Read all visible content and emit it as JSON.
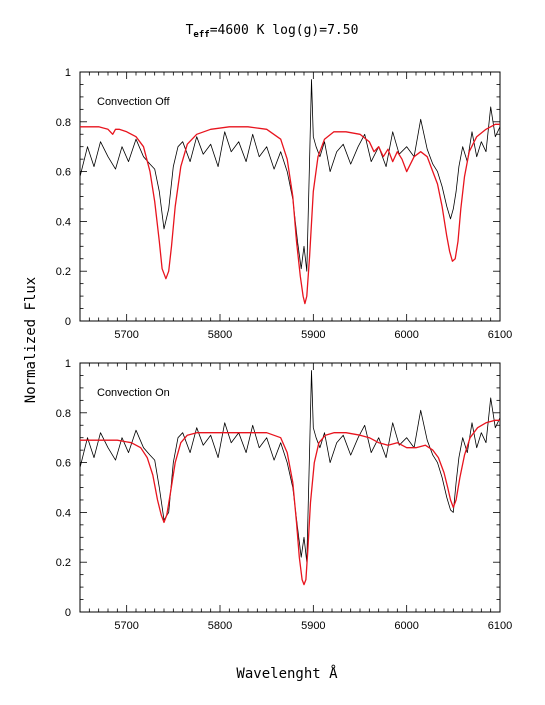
{
  "title": {
    "t": "T",
    "eff": "eff",
    "rest": "=4600 K  log(g)=7.50"
  },
  "ylabel": "Normalized Flux",
  "xlabel": "Wavelenght Å",
  "colors": {
    "observed": "#000000",
    "model": "#e8141e"
  },
  "chart_data": [
    {
      "type": "line",
      "annotation": "Convection Off",
      "xlim": [
        5650,
        6100
      ],
      "ylim": [
        0,
        1
      ],
      "x_ticks": [
        5700,
        5800,
        5900,
        6000,
        6100
      ],
      "y_ticks": [
        0,
        0.2,
        0.4,
        0.6,
        0.8,
        1
      ],
      "series": [
        {
          "color": "#000000",
          "x": [
            5650,
            5658,
            5665,
            5672,
            5680,
            5688,
            5695,
            5702,
            5710,
            5718,
            5725,
            5730,
            5735,
            5740,
            5745,
            5750,
            5755,
            5760,
            5768,
            5775,
            5782,
            5790,
            5798,
            5805,
            5812,
            5820,
            5828,
            5835,
            5842,
            5850,
            5858,
            5865,
            5872,
            5878,
            5883,
            5887,
            5890,
            5893,
            5896,
            5898,
            5900,
            5903,
            5907,
            5912,
            5918,
            5925,
            5932,
            5940,
            5948,
            5955,
            5962,
            5970,
            5978,
            5985,
            5992,
            6000,
            6008,
            6015,
            6022,
            6028,
            6033,
            6038,
            6043,
            6047,
            6050,
            6053,
            6056,
            6060,
            6065,
            6070,
            6075,
            6080,
            6085,
            6090,
            6095,
            6100
          ],
          "y": [
            0.58,
            0.7,
            0.62,
            0.72,
            0.66,
            0.61,
            0.7,
            0.64,
            0.73,
            0.66,
            0.63,
            0.61,
            0.52,
            0.37,
            0.45,
            0.62,
            0.7,
            0.72,
            0.64,
            0.74,
            0.67,
            0.71,
            0.62,
            0.76,
            0.68,
            0.72,
            0.64,
            0.75,
            0.66,
            0.7,
            0.61,
            0.68,
            0.6,
            0.49,
            0.32,
            0.21,
            0.3,
            0.2,
            0.65,
            0.97,
            0.74,
            0.7,
            0.66,
            0.72,
            0.6,
            0.68,
            0.71,
            0.63,
            0.7,
            0.75,
            0.64,
            0.7,
            0.62,
            0.76,
            0.67,
            0.7,
            0.66,
            0.81,
            0.69,
            0.63,
            0.6,
            0.54,
            0.46,
            0.41,
            0.45,
            0.52,
            0.62,
            0.7,
            0.64,
            0.76,
            0.66,
            0.72,
            0.68,
            0.86,
            0.74,
            0.78
          ]
        },
        {
          "color": "#e8141e",
          "x": [
            5650,
            5660,
            5670,
            5680,
            5685,
            5688,
            5692,
            5700,
            5710,
            5718,
            5725,
            5730,
            5735,
            5738,
            5742,
            5745,
            5748,
            5752,
            5758,
            5765,
            5775,
            5790,
            5810,
            5830,
            5850,
            5865,
            5872,
            5878,
            5882,
            5886,
            5889,
            5891,
            5893,
            5896,
            5900,
            5905,
            5912,
            5922,
            5935,
            5950,
            5960,
            5965,
            5970,
            5975,
            5980,
            5985,
            5990,
            5995,
            6000,
            6008,
            6015,
            6022,
            6028,
            6033,
            6038,
            6043,
            6046,
            6049,
            6052,
            6055,
            6058,
            6062,
            6067,
            6075,
            6085,
            6095,
            6100
          ],
          "y": [
            0.78,
            0.78,
            0.78,
            0.77,
            0.75,
            0.77,
            0.77,
            0.76,
            0.74,
            0.7,
            0.6,
            0.48,
            0.32,
            0.21,
            0.17,
            0.2,
            0.3,
            0.46,
            0.62,
            0.71,
            0.75,
            0.77,
            0.78,
            0.78,
            0.77,
            0.73,
            0.65,
            0.5,
            0.32,
            0.18,
            0.1,
            0.07,
            0.1,
            0.26,
            0.52,
            0.66,
            0.73,
            0.76,
            0.76,
            0.75,
            0.72,
            0.68,
            0.7,
            0.66,
            0.69,
            0.64,
            0.68,
            0.65,
            0.6,
            0.66,
            0.68,
            0.66,
            0.6,
            0.55,
            0.46,
            0.34,
            0.28,
            0.24,
            0.25,
            0.32,
            0.45,
            0.58,
            0.68,
            0.74,
            0.77,
            0.79,
            0.79
          ]
        }
      ]
    },
    {
      "type": "line",
      "annotation": "Convection On",
      "xlim": [
        5650,
        6100
      ],
      "ylim": [
        0,
        1
      ],
      "x_ticks": [
        5700,
        5800,
        5900,
        6000,
        6100
      ],
      "y_ticks": [
        0,
        0.2,
        0.4,
        0.6,
        0.8,
        1
      ],
      "series": [
        {
          "color": "#000000",
          "x": [
            5650,
            5658,
            5665,
            5672,
            5680,
            5688,
            5695,
            5702,
            5710,
            5718,
            5725,
            5730,
            5735,
            5740,
            5745,
            5750,
            5755,
            5760,
            5768,
            5775,
            5782,
            5790,
            5798,
            5805,
            5812,
            5820,
            5828,
            5835,
            5842,
            5850,
            5858,
            5865,
            5872,
            5878,
            5883,
            5887,
            5890,
            5893,
            5896,
            5898,
            5900,
            5903,
            5907,
            5912,
            5918,
            5925,
            5932,
            5940,
            5948,
            5955,
            5962,
            5970,
            5978,
            5985,
            5992,
            6000,
            6008,
            6015,
            6022,
            6028,
            6033,
            6038,
            6043,
            6047,
            6050,
            6053,
            6056,
            6060,
            6065,
            6070,
            6075,
            6080,
            6085,
            6090,
            6095,
            6100
          ],
          "y": [
            0.58,
            0.7,
            0.62,
            0.72,
            0.66,
            0.61,
            0.7,
            0.64,
            0.73,
            0.66,
            0.63,
            0.61,
            0.5,
            0.37,
            0.4,
            0.6,
            0.7,
            0.72,
            0.64,
            0.74,
            0.67,
            0.71,
            0.62,
            0.76,
            0.68,
            0.72,
            0.64,
            0.75,
            0.66,
            0.7,
            0.61,
            0.68,
            0.6,
            0.5,
            0.34,
            0.22,
            0.3,
            0.2,
            0.65,
            0.97,
            0.74,
            0.7,
            0.66,
            0.72,
            0.6,
            0.68,
            0.71,
            0.63,
            0.7,
            0.75,
            0.64,
            0.7,
            0.62,
            0.76,
            0.67,
            0.7,
            0.66,
            0.81,
            0.69,
            0.63,
            0.6,
            0.54,
            0.46,
            0.41,
            0.4,
            0.52,
            0.62,
            0.7,
            0.64,
            0.76,
            0.66,
            0.72,
            0.68,
            0.86,
            0.74,
            0.78
          ]
        },
        {
          "color": "#e8141e",
          "x": [
            5650,
            5670,
            5690,
            5705,
            5715,
            5722,
            5728,
            5733,
            5737,
            5740,
            5743,
            5747,
            5752,
            5758,
            5765,
            5775,
            5790,
            5810,
            5830,
            5850,
            5865,
            5872,
            5878,
            5882,
            5885,
            5888,
            5890,
            5892,
            5894,
            5897,
            5901,
            5906,
            5913,
            5922,
            5935,
            5950,
            5960,
            5970,
            5980,
            5990,
            6000,
            6010,
            6020,
            6028,
            6034,
            6040,
            6044,
            6047,
            6050,
            6053,
            6057,
            6062,
            6068,
            6076,
            6085,
            6095,
            6100
          ],
          "y": [
            0.69,
            0.69,
            0.69,
            0.68,
            0.66,
            0.62,
            0.55,
            0.45,
            0.39,
            0.36,
            0.39,
            0.48,
            0.6,
            0.68,
            0.71,
            0.72,
            0.72,
            0.72,
            0.72,
            0.72,
            0.7,
            0.64,
            0.52,
            0.36,
            0.22,
            0.13,
            0.11,
            0.13,
            0.24,
            0.44,
            0.6,
            0.68,
            0.71,
            0.72,
            0.72,
            0.71,
            0.7,
            0.68,
            0.67,
            0.68,
            0.66,
            0.66,
            0.67,
            0.65,
            0.62,
            0.56,
            0.5,
            0.45,
            0.42,
            0.45,
            0.54,
            0.63,
            0.7,
            0.74,
            0.76,
            0.77,
            0.77
          ]
        }
      ]
    }
  ]
}
